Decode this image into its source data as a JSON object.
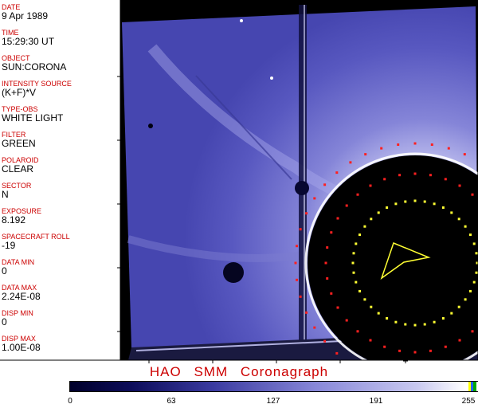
{
  "sidebar": {
    "fields": [
      {
        "label": "DATE",
        "value": "9 Apr 1989"
      },
      {
        "label": "TIME",
        "value": "15:29:30 UT"
      },
      {
        "label": "OBJECT",
        "value": "SUN:CORONA"
      },
      {
        "label": "INTENSITY SOURCE",
        "value": "(K+F)*V"
      },
      {
        "label": "TYPE-OBS",
        "value": "WHITE LIGHT"
      },
      {
        "label": "FILTER",
        "value": "GREEN"
      },
      {
        "label": "POLAROID",
        "value": "CLEAR"
      },
      {
        "label": "SECTOR",
        "value": "N"
      },
      {
        "label": "EXPOSURE",
        "value": "8.192"
      },
      {
        "label": "SPACECRAFT ROLL",
        "value": "-19"
      },
      {
        "label": "DATA MIN",
        "value": "0"
      },
      {
        "label": "DATA MAX",
        "value": "2.24E-08"
      },
      {
        "label": "DISP MIN",
        "value": "0"
      },
      {
        "label": "DISP MAX",
        "value": "1.00E-08"
      }
    ]
  },
  "title": "HAO  SMM Coronagraph",
  "colorbar": {
    "tick_labels": [
      "0",
      "63",
      "127",
      "191",
      "255"
    ],
    "min_color": "#00002a",
    "max_color": "#ffffff"
  },
  "colors": {
    "label_red": "#cc0000",
    "corona_blue": "#5a5ac8",
    "marker_yellow": "#ffff33",
    "marker_red": "#ff2020"
  }
}
